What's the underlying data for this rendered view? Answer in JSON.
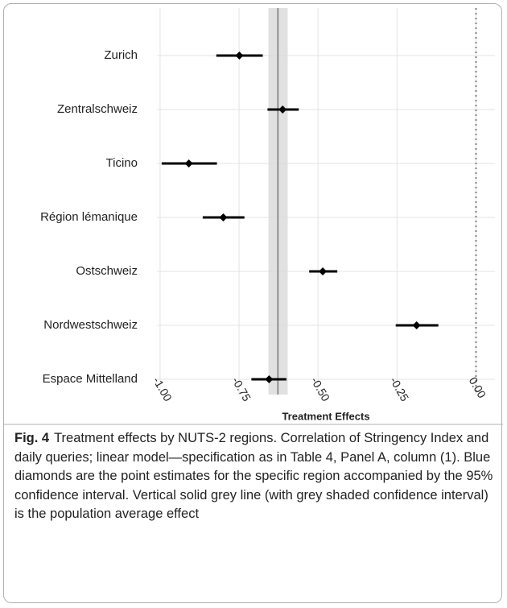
{
  "chart_data": {
    "type": "forest",
    "categories": [
      "Zurich",
      "Zentralschweiz",
      "Ticino",
      "Région lémanique",
      "Ostschweiz",
      "Nordwestschweiz",
      "Espace Mittelland"
    ],
    "values": [
      -0.749,
      -0.612,
      -0.909,
      -0.8,
      -0.485,
      -0.188,
      -0.655
    ],
    "ci_lower": [
      -0.822,
      -0.66,
      -0.995,
      -0.865,
      -0.528,
      -0.254,
      -0.711
    ],
    "ci_upper": [
      -0.675,
      -0.561,
      -0.82,
      -0.733,
      -0.439,
      -0.119,
      -0.6
    ],
    "color": "#000000",
    "average": -0.627,
    "average_ci": [
      -0.657,
      -0.596
    ],
    "reference_line": 0,
    "xlim": [
      -1.01,
      0.06
    ],
    "xticks": [
      {
        "value": -1,
        "label": "-1.00"
      },
      {
        "value": -0.75,
        "label": "-0.75"
      },
      {
        "value": -0.5,
        "label": "-0.50"
      },
      {
        "value": -0.25,
        "label": "-0.25"
      },
      {
        "value": 0,
        "label": "0.00"
      }
    ],
    "xlabel": "Treatment Effects",
    "grid": true
  },
  "caption": {
    "label": "Fig. 4",
    "text": "Treatment effects by NUTS-2 regions. Correlation of Stringency Index and daily queries; linear model—specification as in Table 4, Panel A, column (1). Blue diamonds are the point estimates for the specific region accompanied by the 95% confidence interval. Vertical solid grey line (with grey shaded confidence interval) is the population average effect"
  }
}
